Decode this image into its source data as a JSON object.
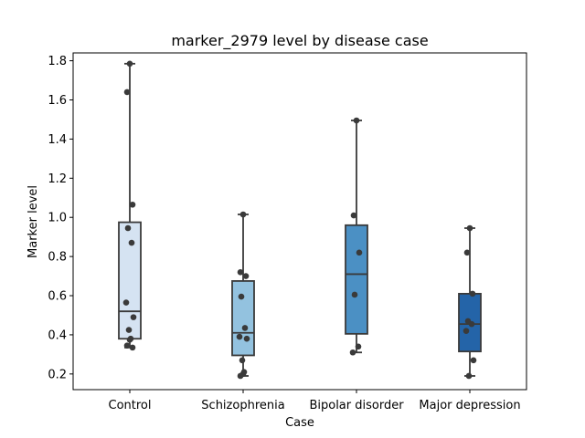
{
  "chart_data": {
    "type": "box",
    "title": "marker_2979 level by disease case",
    "xlabel": "Case",
    "ylabel": "Marker level",
    "ylim": [
      0.12,
      1.84
    ],
    "yticks": [
      0.2,
      0.4,
      0.6,
      0.8,
      1.0,
      1.2,
      1.4,
      1.6,
      1.8
    ],
    "ytick_labels": [
      "0.2",
      "0.4",
      "0.6",
      "0.8",
      "1.0",
      "1.2",
      "1.4",
      "1.6",
      "1.8"
    ],
    "grid": false,
    "categories": [
      "Control",
      "Schizophrenia",
      "Bipolar disorder",
      "Major depression"
    ],
    "box_colors": [
      "#d5e3f2",
      "#93c2df",
      "#4b90c4",
      "#2464a8"
    ],
    "boxes": [
      {
        "q1": 0.38,
        "median": 0.52,
        "q3": 0.975,
        "whisker_low": 0.335,
        "whisker_high": 1.785
      },
      {
        "q1": 0.295,
        "median": 0.41,
        "q3": 0.675,
        "whisker_low": 0.19,
        "whisker_high": 1.015
      },
      {
        "q1": 0.405,
        "median": 0.71,
        "q3": 0.96,
        "whisker_low": 0.31,
        "whisker_high": 1.495
      },
      {
        "q1": 0.315,
        "median": 0.455,
        "q3": 0.61,
        "whisker_low": 0.19,
        "whisker_high": 0.945
      }
    ],
    "points": [
      [
        1.785,
        1.64,
        1.065,
        0.945,
        0.87,
        0.565,
        0.49,
        0.425,
        0.38,
        0.375,
        0.345,
        0.335
      ],
      [
        1.015,
        0.72,
        0.7,
        0.595,
        0.435,
        0.39,
        0.38,
        0.27,
        0.21,
        0.2,
        0.19
      ],
      [
        1.495,
        1.01,
        0.82,
        0.605,
        0.34,
        0.31
      ],
      [
        0.945,
        0.82,
        0.61,
        0.47,
        0.455,
        0.42,
        0.27,
        0.19
      ]
    ],
    "point_color": "#3a3a3a",
    "line_color": "#3a3a3a"
  }
}
